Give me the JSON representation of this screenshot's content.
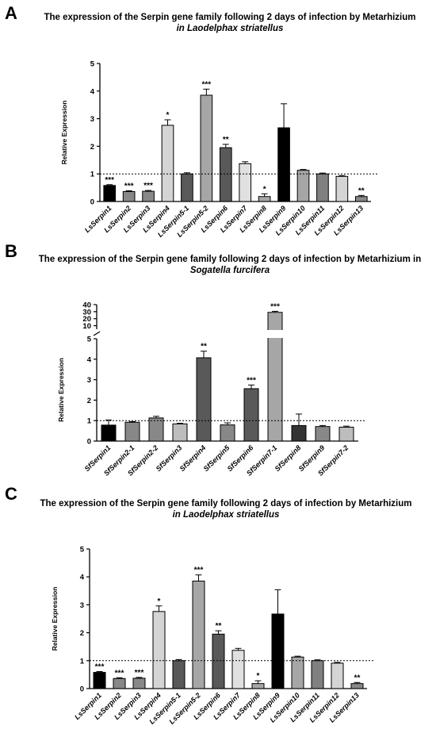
{
  "panels": [
    {
      "letter": "A",
      "title_line1": "The expression of the Serpin gene family following 2 days of infection by Metarhizium",
      "title_line2": "in Laodelphax striatellus"
    },
    {
      "letter": "B",
      "title_line1": "The expression of the Serpin gene family following 2 days of infection by Metarhizium in",
      "title_line2": "Sogatella furcifera"
    },
    {
      "letter": "C",
      "title_line1": "The expression of the Serpin gene family following 2 days of infection by Metarhizium",
      "title_line2": "in Laodelphax striatellus"
    }
  ],
  "chart_data": [
    {
      "type": "bar",
      "title": "The expression of the Serpin gene family following 2 days of infection by Metarhizium in Laodelphax striatellus",
      "ylabel": "Relative Expression",
      "xlabel": "",
      "ylim": [
        0,
        5
      ],
      "yticks": [
        "0",
        "1",
        "2",
        "3",
        "4",
        "5"
      ],
      "reference_line": 1,
      "categories": [
        "LsSerpin1",
        "LsSerpin2",
        "LsSerpin3",
        "LsSerpin4",
        "LsSerpin5-1",
        "LsSerpin5-2",
        "LsSerpin6",
        "LsSerpin7",
        "LsSerpin8",
        "LsSerpin9",
        "LsSerpin10",
        "LsSerpin11",
        "LsSerpin12",
        "LsSerpin13"
      ],
      "values": [
        0.58,
        0.36,
        0.37,
        2.76,
        1.0,
        3.85,
        1.95,
        1.37,
        0.18,
        2.67,
        1.13,
        1.0,
        0.91,
        0.18
      ],
      "errors": [
        0.03,
        0.03,
        0.03,
        0.2,
        0.04,
        0.22,
        0.12,
        0.07,
        0.1,
        0.87,
        0.03,
        0.03,
        0.03,
        0.04
      ],
      "significance": [
        "***",
        "***",
        "***",
        "*",
        "",
        "***",
        "**",
        "",
        "*",
        "",
        "",
        "",
        "",
        "**"
      ],
      "bar_colors": [
        "#000000",
        "#888888",
        "#888888",
        "#d4d4d4",
        "#595959",
        "#a6a6a6",
        "#595959",
        "#e0e0e0",
        "#a6a6a6",
        "#000000",
        "#a6a6a6",
        "#808080",
        "#d4d4d4",
        "#888888"
      ]
    },
    {
      "type": "bar",
      "title": "The expression of the Serpin gene family following 2 days of infection by Metarhizium in Sogatella furcifera",
      "ylabel": "Relative Expression",
      "xlabel": "",
      "ylim": [
        0,
        40
      ],
      "broken_axis": {
        "lower": [
          0,
          5
        ],
        "upper": [
          5,
          40
        ]
      },
      "yticks_lower": [
        "0",
        "1",
        "2",
        "3",
        "4",
        "5"
      ],
      "yticks_upper": [
        "10",
        "20",
        "30",
        "40"
      ],
      "reference_line": 1,
      "categories": [
        "SfSerpin1",
        "SfSerpin2-1",
        "SfSerpin2-2",
        "SfSerpin3",
        "SfSerpin4",
        "SfSerpin5",
        "SfSerpin6",
        "SfSerpin7-1",
        "SfSerpin8",
        "SfSerpin9",
        "SfSerpin7-2"
      ],
      "values": [
        0.78,
        0.92,
        1.13,
        0.84,
        4.07,
        0.79,
        2.56,
        29.0,
        0.76,
        0.71,
        0.68
      ],
      "errors": [
        0.25,
        0.03,
        0.08,
        0.03,
        0.32,
        0.1,
        0.18,
        1.5,
        0.56,
        0.05,
        0.05
      ],
      "significance": [
        "",
        "",
        "",
        "",
        "**",
        "",
        "***",
        "***",
        "",
        "",
        ""
      ],
      "bar_colors": [
        "#000000",
        "#888888",
        "#888888",
        "#bdbdbd",
        "#595959",
        "#888888",
        "#595959",
        "#a6a6a6",
        "#333333",
        "#888888",
        "#bdbdbd"
      ]
    },
    {
      "type": "bar",
      "title": "The expression of the Serpin gene family following 2 days of infection by Metarhizium in Laodelphax striatellus",
      "ylabel": "Relative Expression",
      "xlabel": "",
      "ylim": [
        0,
        5
      ],
      "yticks": [
        "0",
        "1",
        "2",
        "3",
        "4",
        "5"
      ],
      "reference_line": 1,
      "categories": [
        "LsSerpin1",
        "LsSerpin2",
        "LsSerpin3",
        "LsSerpin4",
        "LsSerpin5-1",
        "LsSerpin5-2",
        "LsSerpin6",
        "LsSerpin7",
        "LsSerpin8",
        "LsSerpin9",
        "LsSerpin10",
        "LsSerpin11",
        "LsSerpin12",
        "LsSerpin13"
      ],
      "values": [
        0.58,
        0.36,
        0.37,
        2.76,
        1.0,
        3.85,
        1.95,
        1.37,
        0.18,
        2.67,
        1.13,
        1.0,
        0.91,
        0.18
      ],
      "errors": [
        0.03,
        0.03,
        0.03,
        0.2,
        0.04,
        0.22,
        0.12,
        0.07,
        0.1,
        0.87,
        0.03,
        0.03,
        0.03,
        0.04
      ],
      "significance": [
        "***",
        "***",
        "***",
        "*",
        "",
        "***",
        "**",
        "",
        "*",
        "",
        "",
        "",
        "",
        "**"
      ],
      "bar_colors": [
        "#000000",
        "#888888",
        "#888888",
        "#d4d4d4",
        "#595959",
        "#a6a6a6",
        "#595959",
        "#e0e0e0",
        "#a6a6a6",
        "#000000",
        "#a6a6a6",
        "#808080",
        "#d4d4d4",
        "#888888"
      ]
    }
  ]
}
